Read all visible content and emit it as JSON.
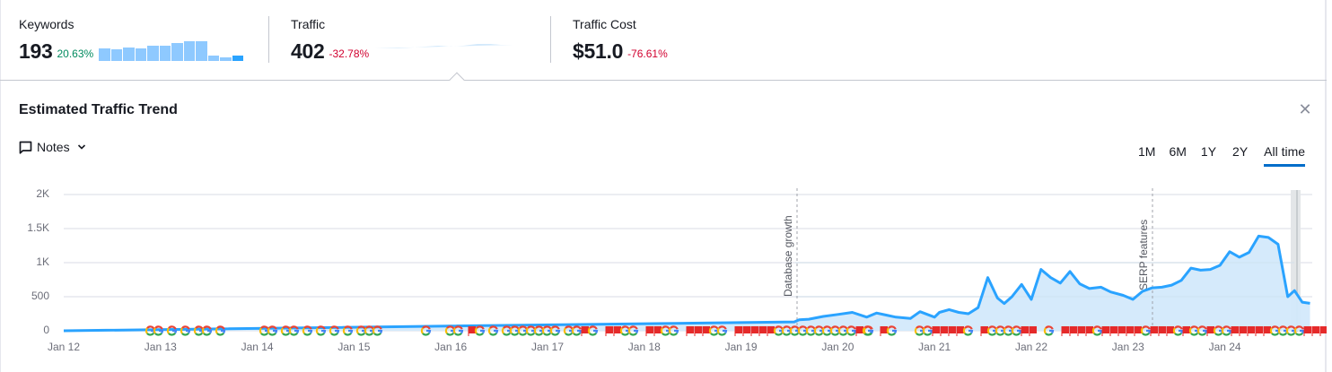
{
  "summary": {
    "keywords": {
      "label": "Keywords",
      "value": "193",
      "delta": "20.63%",
      "delta_direction": "up",
      "sparkbars": [
        14,
        13,
        15,
        14,
        17,
        17,
        20,
        22,
        22,
        6,
        4,
        6
      ]
    },
    "traffic": {
      "label": "Traffic",
      "value": "402",
      "delta": "-32.78%",
      "delta_direction": "down"
    },
    "traffic_cost": {
      "label": "Traffic Cost",
      "value": "$51.0",
      "delta": "-76.61%",
      "delta_direction": "down"
    }
  },
  "card": {
    "title": "Estimated Traffic Trend",
    "close_icon": "close-icon",
    "notes_label": "Notes",
    "range_tabs": [
      {
        "label": "1M",
        "active": false
      },
      {
        "label": "6M",
        "active": false
      },
      {
        "label": "1Y",
        "active": false
      },
      {
        "label": "2Y",
        "active": false
      },
      {
        "label": "All time",
        "active": true
      }
    ]
  },
  "colors": {
    "line": "#2aa3ff",
    "area": "#d3e9fb",
    "positive": "#008a5e",
    "negative": "#d1002f",
    "active_tab": "#006dca",
    "flag": "#e52a2a"
  },
  "chart_data": {
    "type": "area",
    "title": "Estimated Traffic Trend",
    "xlabel": "",
    "ylabel": "",
    "ylim": [
      0,
      2000
    ],
    "yticks": [
      "0",
      "500",
      "1K",
      "1.5K",
      "2K"
    ],
    "xticks": [
      "Jan 12",
      "Jan 13",
      "Jan 14",
      "Jan 15",
      "Jan 16",
      "Jan 17",
      "Jan 18",
      "Jan 19",
      "Jan 20",
      "Jan 21",
      "Jan 22",
      "Jan 23",
      "Jan 24"
    ],
    "grid": true,
    "annotations": [
      {
        "label": "Database growth",
        "x": "Jan 19.6"
      },
      {
        "label": "SERP features",
        "x": "Jan 23.25"
      }
    ],
    "series": [
      {
        "name": "Traffic",
        "x": [
          12.0,
          19.55,
          19.6,
          19.7,
          19.85,
          20.0,
          20.15,
          20.3,
          20.4,
          20.5,
          20.6,
          20.75,
          20.85,
          21.0,
          21.05,
          21.15,
          21.25,
          21.35,
          21.45,
          21.55,
          21.65,
          21.72,
          21.8,
          21.9,
          22.0,
          22.1,
          22.2,
          22.3,
          22.4,
          22.5,
          22.6,
          22.72,
          22.82,
          22.95,
          23.05,
          23.15,
          23.25,
          23.35,
          23.45,
          23.55,
          23.65,
          23.75,
          23.85,
          23.95,
          24.05,
          24.15,
          24.25,
          24.35,
          24.45,
          24.55,
          24.65,
          24.72,
          24.8,
          24.88
        ],
        "values": [
          0,
          130,
          160,
          170,
          210,
          240,
          270,
          200,
          260,
          230,
          200,
          180,
          280,
          200,
          270,
          310,
          270,
          250,
          340,
          780,
          480,
          400,
          500,
          680,
          460,
          900,
          780,
          700,
          870,
          690,
          620,
          640,
          570,
          520,
          460,
          580,
          630,
          640,
          670,
          740,
          920,
          890,
          900,
          960,
          1160,
          1080,
          1150,
          1390,
          1370,
          1270,
          500,
          590,
          420,
          402
        ]
      }
    ],
    "event_markers": {
      "google_updates_count_approx": 70,
      "flag_notes_count_approx": 60
    }
  }
}
